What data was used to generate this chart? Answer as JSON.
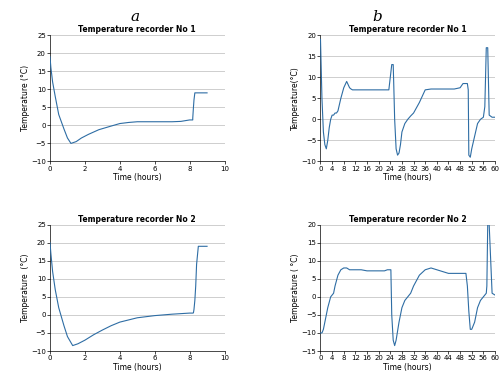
{
  "line_color": "#2E6DA4",
  "line_width": 0.8,
  "bg_color": "#FFFFFF",
  "grid_color": "#AAAAAA",
  "label_a": "a",
  "label_b": "b",
  "panel_titles": [
    "Temperature recorder No 1",
    "Temperature recorder No 2"
  ],
  "xlabel": "Time (hours)",
  "a1": {
    "ylabel": "Temperature (°C)",
    "xlim": [
      0,
      10
    ],
    "ylim": [
      -10,
      25
    ],
    "xticks": [
      0,
      2,
      4,
      6,
      8,
      10
    ],
    "yticks": [
      -10,
      -5,
      0,
      5,
      10,
      15,
      20,
      25
    ]
  },
  "a2": {
    "ylabel": "Temperature  (°C)",
    "xlim": [
      0,
      10
    ],
    "ylim": [
      -10,
      25
    ],
    "xticks": [
      0,
      2,
      4,
      6,
      8,
      10
    ],
    "yticks": [
      -10,
      -5,
      0,
      5,
      10,
      15,
      20,
      25
    ]
  },
  "b1": {
    "ylabel": "Temperature(°C)",
    "xlim": [
      0,
      60
    ],
    "ylim": [
      -10,
      20
    ],
    "xticks": [
      0,
      4,
      8,
      12,
      16,
      20,
      24,
      28,
      32,
      36,
      40,
      44,
      48,
      52,
      56,
      60
    ],
    "yticks": [
      -10,
      -5,
      0,
      5,
      10,
      15,
      20
    ]
  },
  "b2": {
    "ylabel": "Temperature ( °C)",
    "xlim": [
      0,
      60
    ],
    "ylim": [
      -15,
      20
    ],
    "xticks": [
      0,
      4,
      8,
      12,
      16,
      20,
      24,
      28,
      32,
      36,
      40,
      44,
      48,
      52,
      56,
      60
    ],
    "yticks": [
      -15,
      -10,
      -5,
      0,
      5,
      10,
      15,
      20
    ]
  }
}
